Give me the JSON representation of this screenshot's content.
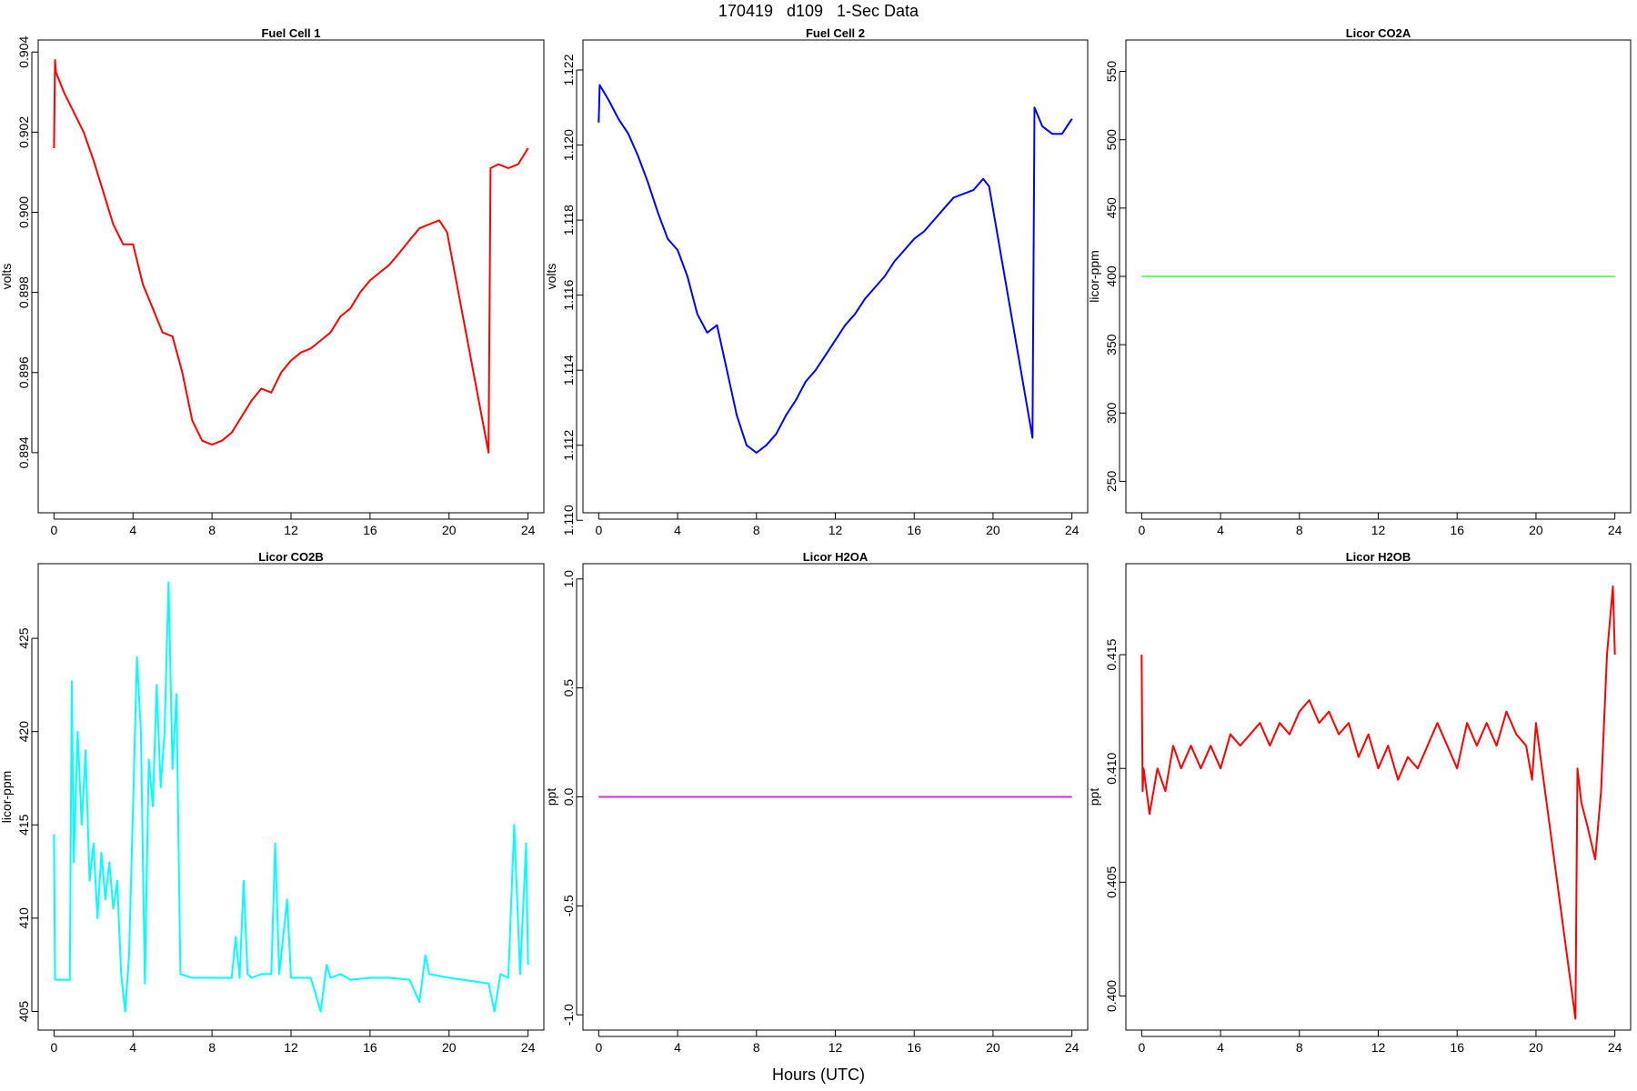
{
  "header": {
    "title": "170419   d109   1-Sec Data"
  },
  "footer": {
    "xlabel": "Hours (UTC)"
  },
  "chart_data": [
    {
      "type": "line",
      "title": "Fuel Cell 1",
      "ylabel": "volts",
      "color": "#ff0000",
      "xlim": [
        -0.8,
        24.8
      ],
      "ylim": [
        0.8925,
        0.9043
      ],
      "xticks": [
        0,
        4,
        8,
        12,
        16,
        20,
        24
      ],
      "yticks": [
        0.894,
        0.896,
        0.898,
        0.9,
        0.902,
        0.904
      ],
      "ytick_labels": [
        "0.894",
        "0.896",
        "0.898",
        "0.900",
        "0.902",
        "0.904"
      ],
      "x": [
        0.0,
        0.05,
        0.1,
        0.5,
        1.0,
        1.5,
        2.0,
        2.5,
        3.0,
        3.5,
        4.0,
        4.5,
        5.0,
        5.5,
        6.0,
        6.5,
        7.0,
        7.5,
        8.0,
        8.5,
        9.0,
        9.5,
        10.0,
        10.5,
        11.0,
        11.5,
        12.0,
        12.5,
        13.0,
        13.5,
        14.0,
        14.5,
        15.0,
        15.5,
        16.0,
        16.5,
        17.0,
        17.5,
        18.0,
        18.5,
        19.0,
        19.5,
        19.9,
        22.0,
        22.1,
        22.5,
        23.0,
        23.5,
        24.0
      ],
      "values": [
        0.9016,
        0.9038,
        0.9035,
        0.903,
        0.9025,
        0.902,
        0.9013,
        0.9005,
        0.8997,
        0.8992,
        0.8992,
        0.8982,
        0.8976,
        0.897,
        0.8969,
        0.896,
        0.8948,
        0.8943,
        0.8942,
        0.8943,
        0.8945,
        0.8949,
        0.8953,
        0.8956,
        0.8955,
        0.896,
        0.8963,
        0.8965,
        0.8966,
        0.8968,
        0.897,
        0.8974,
        0.8976,
        0.898,
        0.8983,
        0.8985,
        0.8987,
        0.899,
        0.8993,
        0.8996,
        0.8997,
        0.8998,
        0.8995,
        0.894,
        0.9011,
        0.9012,
        0.9011,
        0.9012,
        0.9016
      ]
    },
    {
      "type": "line",
      "title": "Fuel Cell 2",
      "ylabel": "volts",
      "color": "#0000ff",
      "xlim": [
        -0.8,
        24.8
      ],
      "ylim": [
        1.1102,
        1.1228
      ],
      "xticks": [
        0,
        4,
        8,
        12,
        16,
        20,
        24
      ],
      "yticks": [
        1.11,
        1.112,
        1.114,
        1.116,
        1.118,
        1.12,
        1.122
      ],
      "ytick_labels": [
        "1.110",
        "1.112",
        "1.114",
        "1.116",
        "1.118",
        "1.120",
        "1.122"
      ],
      "x": [
        0.0,
        0.05,
        0.5,
        1.0,
        1.5,
        2.0,
        2.5,
        3.0,
        3.5,
        4.0,
        4.5,
        5.0,
        5.5,
        6.0,
        6.5,
        7.0,
        7.5,
        8.0,
        8.5,
        9.0,
        9.5,
        10.0,
        10.5,
        11.0,
        11.5,
        12.0,
        12.5,
        13.0,
        13.5,
        14.0,
        14.5,
        15.0,
        15.5,
        16.0,
        16.5,
        17.0,
        17.5,
        18.0,
        18.5,
        19.0,
        19.5,
        19.8,
        22.0,
        22.1,
        22.5,
        23.0,
        23.5,
        24.0
      ],
      "values": [
        1.1206,
        1.1216,
        1.1212,
        1.1207,
        1.1203,
        1.1197,
        1.119,
        1.1182,
        1.1175,
        1.1172,
        1.1165,
        1.1155,
        1.115,
        1.1152,
        1.114,
        1.1128,
        1.112,
        1.1118,
        1.112,
        1.1123,
        1.1128,
        1.1132,
        1.1137,
        1.114,
        1.1144,
        1.1148,
        1.1152,
        1.1155,
        1.1159,
        1.1162,
        1.1165,
        1.1169,
        1.1172,
        1.1175,
        1.1177,
        1.118,
        1.1183,
        1.1186,
        1.1187,
        1.1188,
        1.1191,
        1.1189,
        1.1122,
        1.121,
        1.1205,
        1.1203,
        1.1203,
        1.1207
      ]
    },
    {
      "type": "line",
      "title": "Licor CO2A",
      "ylabel": "licor-ppm",
      "color": "#66ff66",
      "xlim": [
        -0.8,
        24.8
      ],
      "ylim": [
        227,
        573
      ],
      "xticks": [
        0,
        4,
        8,
        12,
        16,
        20,
        24
      ],
      "yticks": [
        250,
        300,
        350,
        400,
        450,
        500,
        550
      ],
      "ytick_labels": [
        "250",
        "300",
        "350",
        "400",
        "450",
        "500",
        "550"
      ],
      "x": [
        0,
        24
      ],
      "values": [
        400,
        400
      ]
    },
    {
      "type": "line",
      "title": "Licor CO2B",
      "ylabel": "licor-ppm",
      "color": "#00ffff",
      "xlim": [
        -0.8,
        24.8
      ],
      "ylim": [
        404.0,
        429.0
      ],
      "xticks": [
        0,
        4,
        8,
        12,
        16,
        20,
        24
      ],
      "yticks": [
        405,
        410,
        415,
        420,
        425
      ],
      "ytick_labels": [
        "405",
        "410",
        "415",
        "420",
        "425"
      ],
      "x": [
        0.0,
        0.05,
        0.1,
        0.8,
        0.9,
        1.0,
        1.2,
        1.4,
        1.6,
        1.8,
        2.0,
        2.2,
        2.4,
        2.6,
        2.8,
        3.0,
        3.2,
        3.4,
        3.6,
        3.8,
        4.0,
        4.2,
        4.4,
        4.6,
        4.8,
        5.0,
        5.2,
        5.4,
        5.6,
        5.8,
        6.0,
        6.2,
        6.4,
        7.0,
        8.0,
        9.0,
        9.2,
        9.4,
        9.6,
        9.8,
        10.0,
        10.5,
        11.0,
        11.2,
        11.4,
        11.8,
        12.0,
        13.0,
        13.5,
        13.8,
        14.0,
        14.5,
        15.0,
        16.0,
        17.0,
        18.0,
        18.5,
        18.8,
        19.0,
        20.0,
        22.0,
        22.3,
        22.6,
        23.0,
        23.3,
        23.6,
        23.9,
        24.0
      ],
      "values": [
        414.5,
        406.7,
        406.7,
        406.7,
        422.7,
        413.0,
        420.0,
        415.0,
        419.0,
        412.0,
        414.0,
        410.0,
        413.5,
        411.0,
        413.0,
        410.5,
        412.0,
        407.0,
        405.0,
        408.0,
        416.0,
        424.0,
        420.0,
        406.5,
        418.5,
        416.0,
        422.5,
        417.0,
        420.0,
        428.0,
        418.0,
        422.0,
        407.0,
        406.8,
        406.8,
        406.8,
        409.0,
        406.8,
        412.0,
        407.0,
        406.8,
        407.0,
        407.0,
        414.0,
        407.0,
        411.0,
        406.8,
        406.8,
        405.0,
        407.5,
        406.8,
        407.0,
        406.7,
        406.8,
        406.8,
        406.7,
        405.5,
        408.0,
        407.0,
        406.8,
        406.5,
        405.0,
        407.0,
        406.8,
        415.0,
        407.0,
        414.0,
        407.5
      ]
    },
    {
      "type": "line",
      "title": "Licor H2OA",
      "ylabel": "ppt",
      "color": "#cc33cc",
      "xlim": [
        -0.8,
        24.8
      ],
      "ylim": [
        -1.07,
        1.07
      ],
      "xticks": [
        0,
        4,
        8,
        12,
        16,
        20,
        24
      ],
      "yticks": [
        -1.0,
        -0.5,
        0.0,
        0.5,
        1.0
      ],
      "ytick_labels": [
        "-1.0",
        "-0.5",
        "0.0",
        "0.5",
        "1.0"
      ],
      "x": [
        0,
        24
      ],
      "values": [
        0,
        0
      ]
    },
    {
      "type": "line",
      "title": "Licor H2OB",
      "ylabel": "ppt",
      "color": "#ff0000",
      "xlim": [
        -0.8,
        24.8
      ],
      "ylim": [
        0.3985,
        0.419
      ],
      "xticks": [
        0,
        4,
        8,
        12,
        16,
        20,
        24
      ],
      "yticks": [
        0.4,
        0.405,
        0.41,
        0.415
      ],
      "ytick_labels": [
        "0.400",
        "0.405",
        "0.410",
        "0.415"
      ],
      "x": [
        0.0,
        0.05,
        0.1,
        0.4,
        0.8,
        1.2,
        1.6,
        2.0,
        2.5,
        3.0,
        3.5,
        4.0,
        4.5,
        5.0,
        5.5,
        6.0,
        6.5,
        7.0,
        7.5,
        8.0,
        8.5,
        9.0,
        9.5,
        10.0,
        10.5,
        11.0,
        11.5,
        12.0,
        12.5,
        13.0,
        13.5,
        14.0,
        14.5,
        15.0,
        15.5,
        16.0,
        16.5,
        17.0,
        17.5,
        18.0,
        18.5,
        19.0,
        19.5,
        19.8,
        20.0,
        22.0,
        22.1,
        22.3,
        22.6,
        23.0,
        23.3,
        23.6,
        23.9,
        24.0
      ],
      "values": [
        0.415,
        0.409,
        0.41,
        0.408,
        0.41,
        0.409,
        0.411,
        0.41,
        0.411,
        0.41,
        0.411,
        0.41,
        0.4115,
        0.411,
        0.4115,
        0.412,
        0.411,
        0.412,
        0.4115,
        0.4125,
        0.413,
        0.412,
        0.4125,
        0.4115,
        0.412,
        0.4105,
        0.4115,
        0.41,
        0.411,
        0.4095,
        0.4105,
        0.41,
        0.411,
        0.412,
        0.411,
        0.41,
        0.412,
        0.411,
        0.412,
        0.411,
        0.4125,
        0.4115,
        0.411,
        0.4095,
        0.412,
        0.399,
        0.41,
        0.4085,
        0.4075,
        0.406,
        0.409,
        0.415,
        0.418,
        0.415
      ]
    }
  ]
}
